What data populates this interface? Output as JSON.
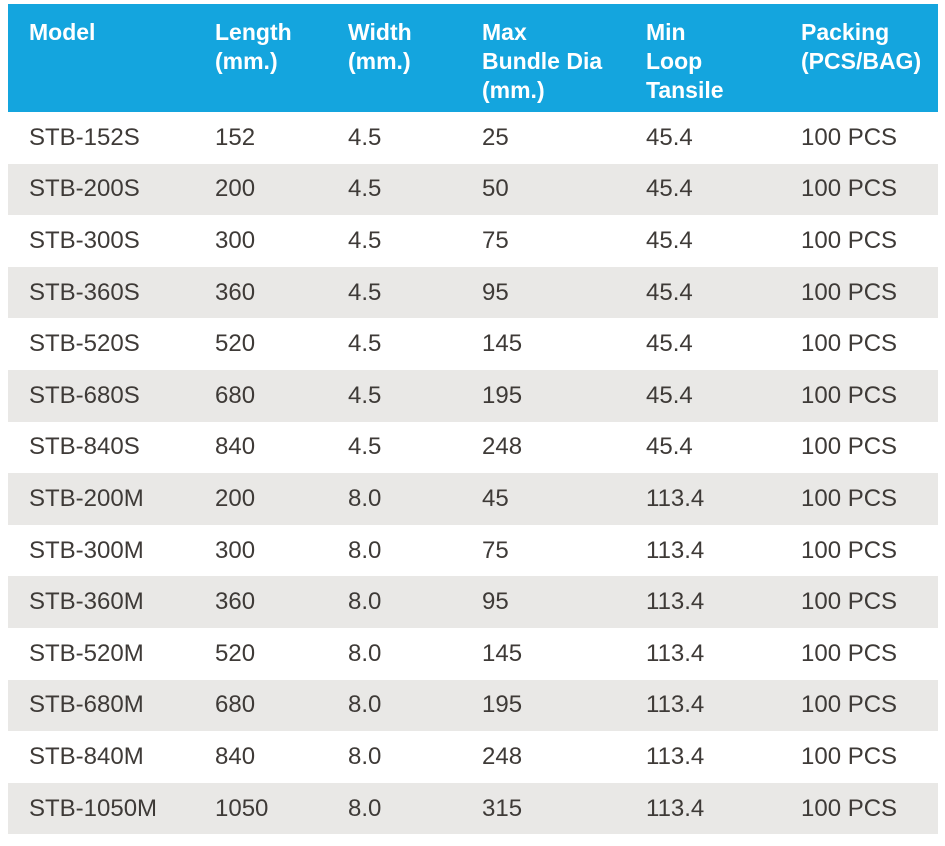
{
  "colors": {
    "header_bg": "#14a5de",
    "header_text": "#ffffff",
    "row_bg": "#ffffff",
    "row_alt_bg": "#e9e8e6",
    "body_text": "#3e3a37"
  },
  "table": {
    "columns": [
      {
        "id": "model",
        "label_lines": [
          "Model"
        ]
      },
      {
        "id": "length-mm",
        "label_lines": [
          "Length",
          "(mm.)"
        ]
      },
      {
        "id": "width-mm",
        "label_lines": [
          "Width",
          "(mm.)"
        ]
      },
      {
        "id": "max-bundle-dia",
        "label_lines": [
          "Max",
          "Bundle Dia",
          "(mm.)"
        ]
      },
      {
        "id": "min-loop-tansile",
        "label_lines": [
          "Min",
          "Loop",
          "Tansile"
        ]
      },
      {
        "id": "packing",
        "label_lines": [
          "Packing",
          "(PCS/BAG)"
        ]
      }
    ],
    "rows": [
      [
        "STB-152S",
        "152",
        "4.5",
        "25",
        "45.4",
        "100 PCS"
      ],
      [
        "STB-200S",
        "200",
        "4.5",
        "50",
        "45.4",
        "100 PCS"
      ],
      [
        "STB-300S",
        "300",
        "4.5",
        "75",
        "45.4",
        "100 PCS"
      ],
      [
        "STB-360S",
        "360",
        "4.5",
        "95",
        "45.4",
        "100 PCS"
      ],
      [
        "STB-520S",
        "520",
        "4.5",
        "145",
        "45.4",
        "100 PCS"
      ],
      [
        "STB-680S",
        "680",
        "4.5",
        "195",
        "45.4",
        "100 PCS"
      ],
      [
        "STB-840S",
        "840",
        "4.5",
        "248",
        "45.4",
        "100 PCS"
      ],
      [
        "STB-200M",
        "200",
        "8.0",
        "45",
        "113.4",
        "100 PCS"
      ],
      [
        "STB-300M",
        "300",
        "8.0",
        "75",
        "113.4",
        "100 PCS"
      ],
      [
        "STB-360M",
        "360",
        "8.0",
        "95",
        "113.4",
        "100 PCS"
      ],
      [
        "STB-520M",
        "520",
        "8.0",
        "145",
        "113.4",
        "100 PCS"
      ],
      [
        "STB-680M",
        "680",
        "8.0",
        "195",
        "113.4",
        "100 PCS"
      ],
      [
        "STB-840M",
        "840",
        "8.0",
        "248",
        "113.4",
        "100 PCS"
      ],
      [
        "STB-1050M",
        "1050",
        "8.0",
        "315",
        "113.4",
        "100 PCS"
      ]
    ]
  }
}
